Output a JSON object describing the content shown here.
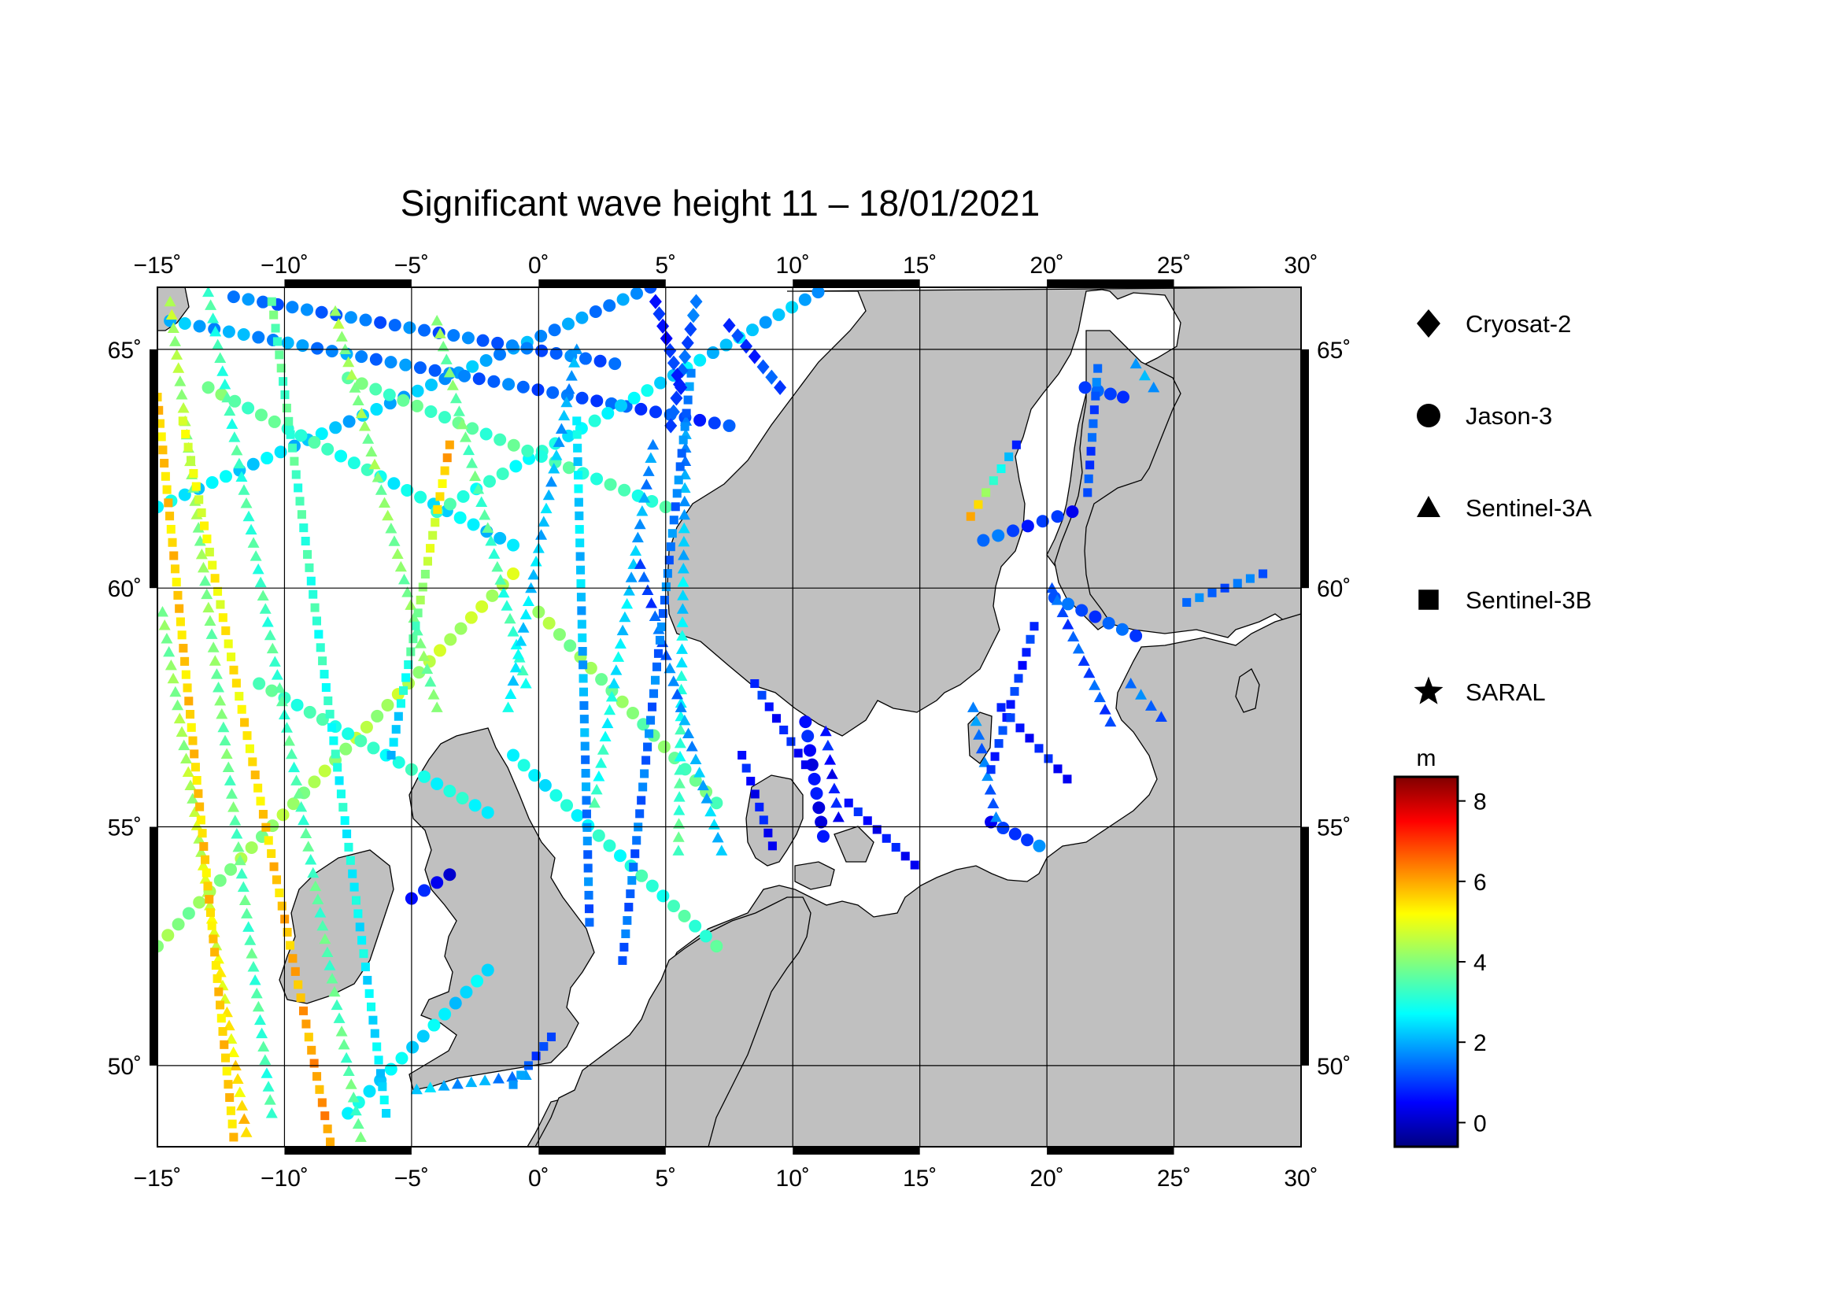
{
  "title": "Significant wave height 11 – 18/01/2021",
  "map": {
    "lon_range": [
      -15,
      30
    ],
    "lat_range": [
      48.3,
      66.3
    ],
    "lon_ticks": [
      -15,
      -10,
      -5,
      0,
      5,
      10,
      15,
      20,
      25,
      30
    ],
    "lat_ticks": [
      50,
      55,
      60,
      65
    ],
    "lon_labels": [
      "−15˚",
      "−10˚",
      "−5˚",
      "0˚",
      "5˚",
      "10˚",
      "15˚",
      "20˚",
      "25˚",
      "30˚"
    ],
    "lat_labels": [
      "50˚",
      "55˚",
      "60˚",
      "65˚"
    ],
    "land_color": "#c0c0c0",
    "sea_color": "#ffffff",
    "grid": true
  },
  "legend": {
    "items": [
      {
        "label": "Cryosat-2",
        "marker": "diamond"
      },
      {
        "label": "Jason-3",
        "marker": "circle"
      },
      {
        "label": "Sentinel-3A",
        "marker": "triangle"
      },
      {
        "label": "Sentinel-3B",
        "marker": "square"
      },
      {
        "label": "SARAL",
        "marker": "star"
      }
    ]
  },
  "colorbar": {
    "unit": "m",
    "min": -0.6,
    "max": 8.6,
    "ticks": [
      0,
      2,
      4,
      6,
      8
    ],
    "tick_labels": [
      "0",
      "2",
      "4",
      "6",
      "8"
    ],
    "colormap": [
      "#000080",
      "#0000ff",
      "#00ffff",
      "#ffff00",
      "#ff0000",
      "#800000"
    ]
  },
  "chart_data": {
    "type": "scatter",
    "title": "Significant wave height 11 – 18/01/2021",
    "value_label": "m",
    "series": [
      {
        "name": "Jason-3",
        "marker": "circle",
        "tracks": [
          {
            "from": [
              -15,
              61.7
            ],
            "to": [
              4.4,
              66.3
            ],
            "v": [
              2.6,
              1.6
            ]
          },
          {
            "from": [
              -13,
              64.2
            ],
            "to": [
              -1,
              60.9
            ],
            "v": [
              3.8,
              2.2
            ]
          },
          {
            "from": [
              -14.5,
              65.6
            ],
            "to": [
              7.5,
              63.4
            ],
            "v": [
              2.0,
              1.0
            ]
          },
          {
            "from": [
              -12,
              66.1
            ],
            "to": [
              3,
              64.7
            ],
            "v": [
              1.5,
              1.4
            ]
          },
          {
            "from": [
              -4,
              61.6
            ],
            "to": [
              11,
              66.2
            ],
            "v": [
              3.2,
              2.0
            ]
          },
          {
            "from": [
              -15,
              52.5
            ],
            "to": [
              -1,
              60.3
            ],
            "v": [
              4.0,
              4.6
            ]
          },
          {
            "from": [
              -7.5,
              64.4
            ],
            "to": [
              5,
              61.7
            ],
            "v": [
              3.6,
              3.2
            ]
          },
          {
            "from": [
              -7.5,
              49.0
            ],
            "to": [
              -2,
              52.0
            ],
            "v": [
              2.6,
              2.4
            ]
          },
          {
            "from": [
              -11,
              58.0
            ],
            "to": [
              -2,
              55.3
            ],
            "v": [
              3.4,
              2.8
            ]
          },
          {
            "from": [
              0,
              59.5
            ],
            "to": [
              7,
              55.5
            ],
            "v": [
              4.2,
              3.6
            ]
          },
          {
            "from": [
              -1,
              56.5
            ],
            "to": [
              7,
              52.5
            ],
            "v": [
              2.6,
              3.4
            ]
          },
          {
            "from": [
              20.3,
              59.8
            ],
            "to": [
              23.5,
              59.0
            ],
            "v": [
              1.2,
              1.2
            ]
          },
          {
            "from": [
              17.8,
              55.1
            ],
            "to": [
              19.7,
              54.6
            ],
            "v": [
              0.4,
              1.6
            ]
          },
          {
            "from": [
              -5,
              53.5
            ],
            "to": [
              -3.5,
              54.0
            ],
            "v": [
              0.6,
              0.4
            ]
          },
          {
            "from": [
              17.5,
              61.0
            ],
            "to": [
              21,
              61.6
            ],
            "v": [
              1.4,
              0.6
            ]
          },
          {
            "from": [
              21.5,
              64.2
            ],
            "to": [
              23,
              64.0
            ],
            "v": [
              1.0,
              1.2
            ]
          },
          {
            "from": [
              10.5,
              57.2
            ],
            "to": [
              11.2,
              54.8
            ],
            "v": [
              0.6,
              0.4
            ]
          }
        ]
      },
      {
        "name": "Sentinel-3A",
        "marker": "triangle",
        "tracks": [
          {
            "from": [
              -14.5,
              66.0
            ],
            "to": [
              -10.5,
              49.0
            ],
            "v": [
              4.4,
              3.2
            ]
          },
          {
            "from": [
              -14.8,
              59.5
            ],
            "to": [
              -11.5,
              48.6
            ],
            "v": [
              3.8,
              5.6
            ]
          },
          {
            "from": [
              -13,
              66.2
            ],
            "to": [
              -7,
              48.5
            ],
            "v": [
              3.2,
              3.6
            ]
          },
          {
            "from": [
              -8,
              65.8
            ],
            "to": [
              -4,
              57.5
            ],
            "v": [
              4.2,
              3.8
            ]
          },
          {
            "from": [
              -4,
              65.6
            ],
            "to": [
              -0.5,
              58.0
            ],
            "v": [
              4.0,
              3.0
            ]
          },
          {
            "from": [
              1.5,
              65.0
            ],
            "to": [
              -1.2,
              57.5
            ],
            "v": [
              1.8,
              2.6
            ]
          },
          {
            "from": [
              4.5,
              63.0
            ],
            "to": [
              2.2,
              55.5
            ],
            "v": [
              1.6,
              3.2
            ]
          },
          {
            "from": [
              5.8,
              63.5
            ],
            "to": [
              5.5,
              54.5
            ],
            "v": [
              1.6,
              3.6
            ]
          },
          {
            "from": [
              4,
              60.5
            ],
            "to": [
              7.2,
              54.5
            ],
            "v": [
              1.0,
              2.4
            ]
          },
          {
            "from": [
              11.3,
              57.0
            ],
            "to": [
              11.8,
              55.2
            ],
            "v": [
              0.6,
              0.6
            ]
          },
          {
            "from": [
              17.1,
              57.5
            ],
            "to": [
              18,
              55.2
            ],
            "v": [
              1.6,
              1.4
            ]
          },
          {
            "from": [
              23.5,
              64.7
            ],
            "to": [
              24.2,
              64.2
            ],
            "v": [
              1.8,
              1.8
            ]
          },
          {
            "from": [
              20.2,
              60.0
            ],
            "to": [
              22.5,
              57.2
            ],
            "v": [
              1.2,
              1.2
            ]
          },
          {
            "from": [
              23.3,
              58.0
            ],
            "to": [
              24.5,
              57.3
            ],
            "v": [
              1.4,
              1.4
            ]
          },
          {
            "from": [
              -4.8,
              49.5
            ],
            "to": [
              -0.5,
              49.8
            ],
            "v": [
              2.2,
              1.6
            ]
          }
        ]
      },
      {
        "name": "Sentinel-3B",
        "marker": "square",
        "tracks": [
          {
            "from": [
              -15,
              64.0
            ],
            "to": [
              -12,
              48.5
            ],
            "v": [
              5.6,
              5.6
            ]
          },
          {
            "from": [
              -14,
              63.5
            ],
            "to": [
              -8.2,
              48.4
            ],
            "v": [
              4.8,
              6.2
            ]
          },
          {
            "from": [
              -10.5,
              66.0
            ],
            "to": [
              -6,
              49.0
            ],
            "v": [
              3.6,
              2.4
            ]
          },
          {
            "from": [
              -3.5,
              63.0
            ],
            "to": [
              -5.8,
              56.5
            ],
            "v": [
              6.0,
              2.0
            ]
          },
          {
            "from": [
              1.5,
              63.5
            ],
            "to": [
              2,
              53.0
            ],
            "v": [
              2.6,
              1.4
            ]
          },
          {
            "from": [
              6.0,
              64.5
            ],
            "to": [
              3.3,
              52.2
            ],
            "v": [
              1.6,
              1.4
            ]
          },
          {
            "from": [
              8.5,
              58.0
            ],
            "to": [
              10.5,
              56.3
            ],
            "v": [
              0.8,
              0.6
            ]
          },
          {
            "from": [
              8.0,
              56.5
            ],
            "to": [
              9.2,
              54.6
            ],
            "v": [
              0.6,
              0.6
            ]
          },
          {
            "from": [
              12.2,
              55.5
            ],
            "to": [
              14.8,
              54.2
            ],
            "v": [
              0.6,
              0.6
            ]
          },
          {
            "from": [
              17.0,
              61.5
            ],
            "to": [
              18.8,
              63.0
            ],
            "v": [
              6.0,
              1.0
            ]
          },
          {
            "from": [
              22.0,
              64.6
            ],
            "to": [
              21.6,
              62.0
            ],
            "v": [
              1.4,
              1.0
            ]
          },
          {
            "from": [
              19.5,
              59.2
            ],
            "to": [
              17.8,
              56.2
            ],
            "v": [
              0.8,
              1.0
            ]
          },
          {
            "from": [
              18.2,
              57.5
            ],
            "to": [
              20.8,
              56.0
            ],
            "v": [
              0.8,
              0.6
            ]
          },
          {
            "from": [
              -1.0,
              49.6
            ],
            "to": [
              0.5,
              50.6
            ],
            "v": [
              1.8,
              0.8
            ]
          },
          {
            "from": [
              25.5,
              59.7
            ],
            "to": [
              28.5,
              60.3
            ],
            "v": [
              1.4,
              1.4
            ]
          }
        ]
      },
      {
        "name": "Cryosat-2",
        "marker": "diamond",
        "tracks": [
          {
            "from": [
              5.2,
              63.4
            ],
            "to": [
              6.2,
              66.0
            ],
            "v": [
              1.0,
              1.4
            ]
          },
          {
            "from": [
              7.5,
              65.5
            ],
            "to": [
              9.5,
              64.2
            ],
            "v": [
              0.8,
              1.2
            ]
          },
          {
            "from": [
              4.6,
              66.0
            ],
            "to": [
              5.6,
              64.2
            ],
            "v": [
              0.6,
              1.0
            ]
          }
        ]
      },
      {
        "name": "SARAL",
        "marker": "star",
        "tracks": []
      }
    ]
  }
}
